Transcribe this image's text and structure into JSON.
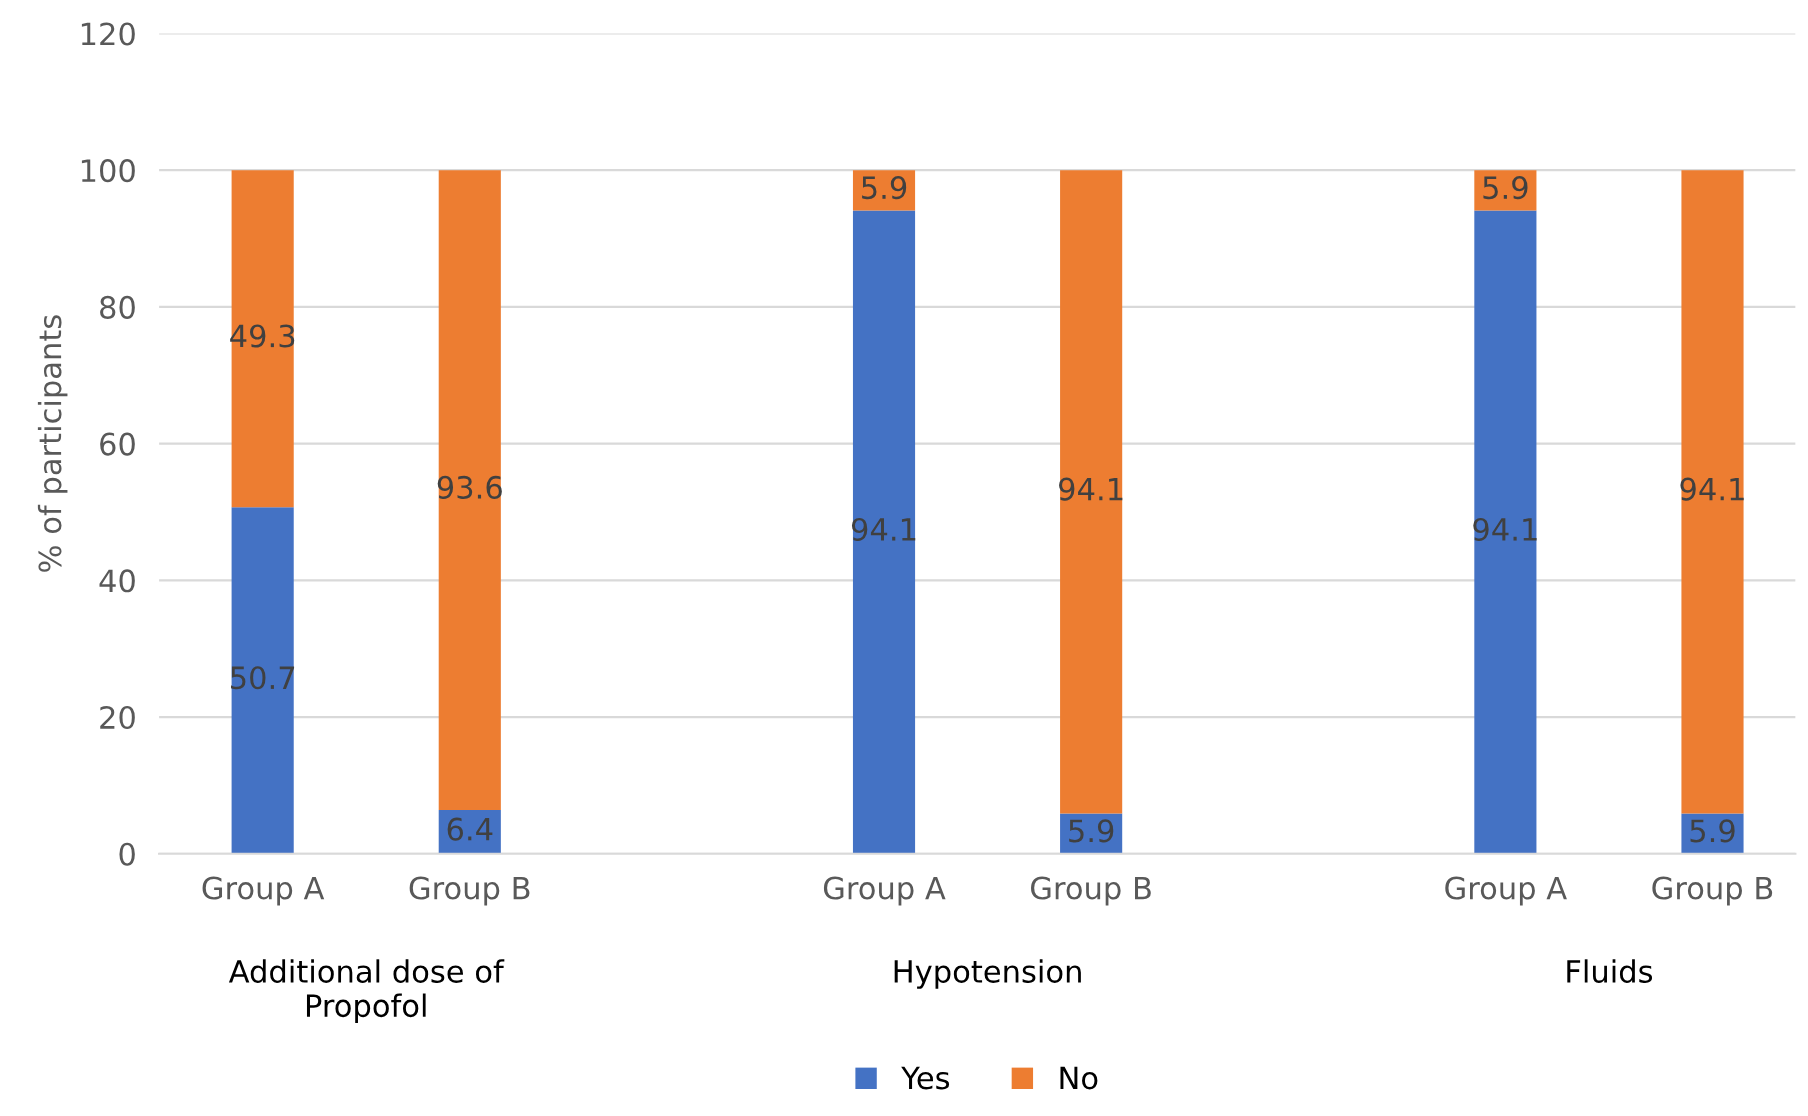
{
  "chart_data": {
    "type": "bar",
    "stacked": true,
    "ylabel": "% of participants",
    "categories": [
      "Group A",
      "Group B",
      null,
      "Group A",
      "Group B",
      null,
      "Group A",
      "Group B"
    ],
    "series": [
      {
        "name": "Yes",
        "color": "#4472c4",
        "values": [
          50.7,
          6.4,
          null,
          94.1,
          5.9,
          null,
          94.1,
          5.9
        ]
      },
      {
        "name": "No",
        "color": "#ed7d31",
        "values": [
          49.3,
          93.6,
          null,
          5.9,
          94.1,
          null,
          5.9,
          94.1
        ]
      }
    ],
    "annotations": [
      "Additional dose of\nPropofol",
      "Hypotension",
      "Fluids"
    ],
    "ylim": [
      0,
      120
    ],
    "yticks": [
      0,
      20,
      40,
      60,
      80,
      100,
      120
    ],
    "grid": "y",
    "legend": "bottom",
    "data_labels": true
  }
}
